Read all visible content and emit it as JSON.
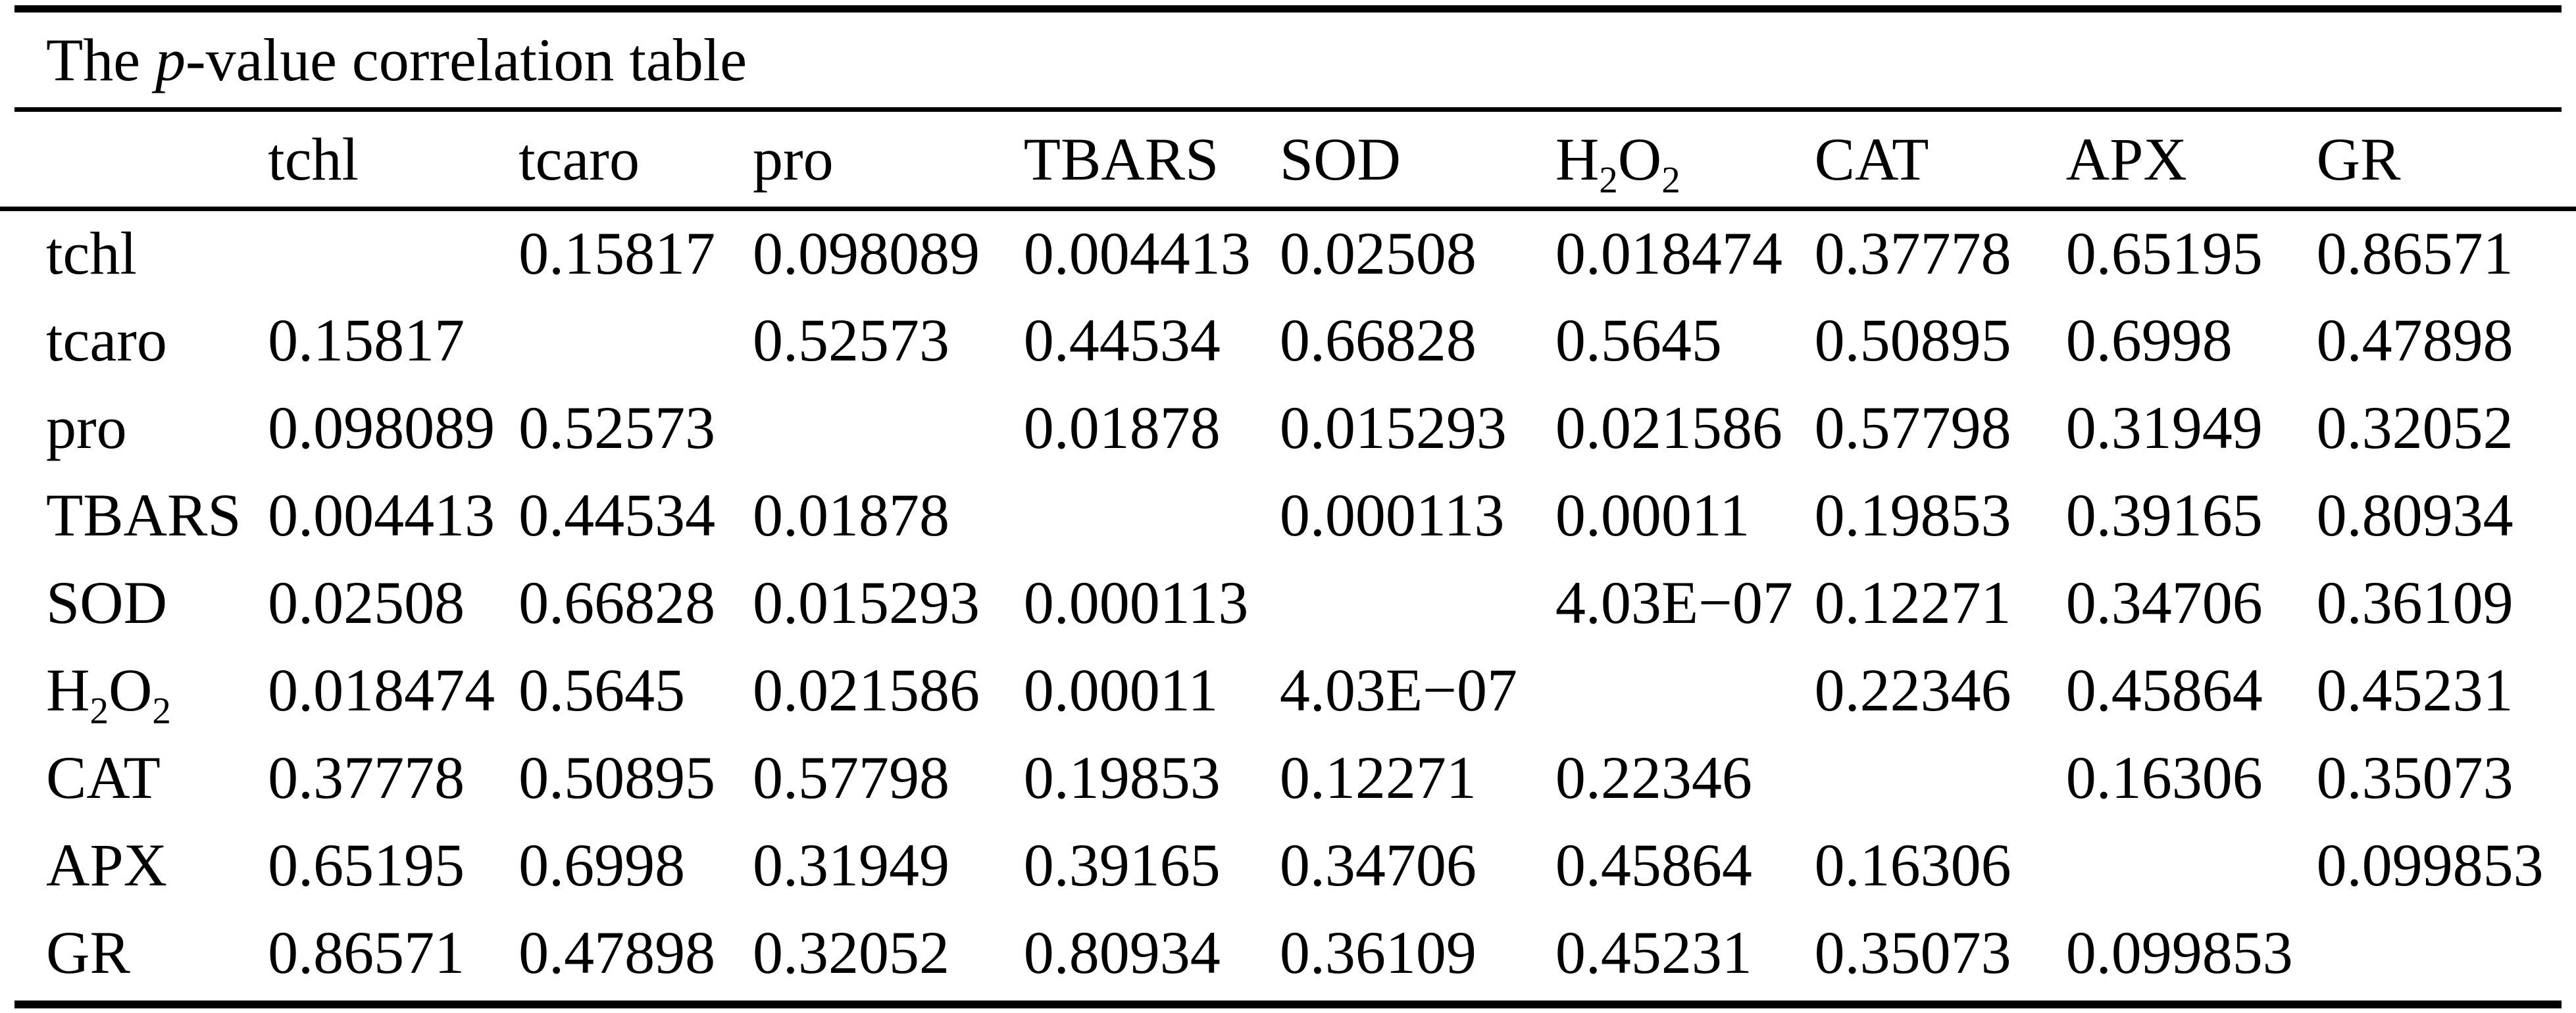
{
  "title": {
    "segments": [
      {
        "text": "The "
      },
      {
        "text": "p",
        "italic": true
      },
      {
        "text": "-value correlation table"
      }
    ]
  },
  "colors": {
    "background": "#ffffff",
    "text": "#000000",
    "rules": "#000000"
  },
  "table": {
    "columns": [
      {
        "label": ""
      },
      {
        "label": "tchl"
      },
      {
        "label": "tcaro"
      },
      {
        "label": "pro"
      },
      {
        "label": "TBARS"
      },
      {
        "label": "SOD"
      },
      {
        "label": "H~2~O~2~"
      },
      {
        "label": "CAT"
      },
      {
        "label": "APX"
      },
      {
        "label": "GR"
      }
    ],
    "rows": [
      {
        "label": "tchl",
        "values": [
          "",
          "0.15817",
          "0.098089",
          "0.004413",
          "0.02508",
          "0.018474",
          "0.37778",
          "0.65195",
          "0.86571"
        ]
      },
      {
        "label": "tcaro",
        "values": [
          "0.15817",
          "",
          "0.52573",
          "0.44534",
          "0.66828",
          "0.5645",
          "0.50895",
          "0.6998",
          "0.47898"
        ]
      },
      {
        "label": "pro",
        "values": [
          "0.098089",
          "0.52573",
          "",
          "0.01878",
          "0.015293",
          "0.021586",
          "0.57798",
          "0.31949",
          "0.32052"
        ]
      },
      {
        "label": "TBARS",
        "values": [
          "0.004413",
          "0.44534",
          "0.01878",
          "",
          "0.000113",
          "0.00011",
          "0.19853",
          "0.39165",
          "0.80934"
        ]
      },
      {
        "label": "SOD",
        "values": [
          "0.02508",
          "0.66828",
          "0.015293",
          "0.000113",
          "",
          "4.03E−07",
          "0.12271",
          "0.34706",
          "0.36109"
        ]
      },
      {
        "label": "H~2~O~2~",
        "values": [
          "0.018474",
          "0.5645",
          "0.021586",
          "0.00011",
          "4.03E−07",
          "",
          "0.22346",
          "0.45864",
          "0.45231"
        ]
      },
      {
        "label": "CAT",
        "values": [
          "0.37778",
          "0.50895",
          "0.57798",
          "0.19853",
          "0.12271",
          "0.22346",
          "",
          "0.16306",
          "0.35073"
        ]
      },
      {
        "label": "APX",
        "values": [
          "0.65195",
          "0.6998",
          "0.31949",
          "0.39165",
          "0.34706",
          "0.45864",
          "0.16306",
          "",
          "0.099853"
        ]
      },
      {
        "label": "GR",
        "values": [
          "0.86571",
          "0.47898",
          "0.32052",
          "0.80934",
          "0.36109",
          "0.45231",
          "0.35073",
          "0.099853",
          ""
        ]
      }
    ]
  }
}
